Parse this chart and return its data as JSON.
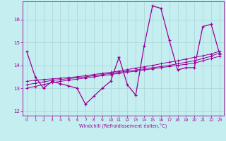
{
  "xlabel": "Windchill (Refroidissement éolien,°C)",
  "xlim": [
    -0.5,
    23.5
  ],
  "ylim": [
    11.8,
    16.8
  ],
  "yticks": [
    12,
    13,
    14,
    15,
    16
  ],
  "xticks": [
    0,
    1,
    2,
    3,
    4,
    5,
    6,
    7,
    8,
    9,
    10,
    11,
    12,
    13,
    14,
    15,
    16,
    17,
    18,
    19,
    20,
    21,
    22,
    23
  ],
  "background_color": "#c5eef0",
  "line_color": "#990099",
  "grid_color": "#b0d8dc",
  "series": {
    "main": [
      14.6,
      13.5,
      13.0,
      13.3,
      13.2,
      13.1,
      13.0,
      12.3,
      12.65,
      13.0,
      13.3,
      14.35,
      13.15,
      12.7,
      14.85,
      16.6,
      16.5,
      15.1,
      13.8,
      13.9,
      13.9,
      15.7,
      15.8,
      14.5
    ],
    "trend1": [
      13.0,
      13.08,
      13.16,
      13.24,
      13.3,
      13.35,
      13.4,
      13.45,
      13.5,
      13.55,
      13.6,
      13.65,
      13.7,
      13.75,
      13.8,
      13.85,
      13.9,
      13.95,
      14.0,
      14.05,
      14.1,
      14.2,
      14.3,
      14.4
    ],
    "trend2": [
      13.15,
      13.22,
      13.28,
      13.34,
      13.38,
      13.42,
      13.46,
      13.5,
      13.55,
      13.6,
      13.65,
      13.7,
      13.75,
      13.8,
      13.85,
      13.9,
      13.95,
      14.0,
      14.07,
      14.14,
      14.2,
      14.3,
      14.4,
      14.55
    ],
    "trend3": [
      13.3,
      13.35,
      13.38,
      13.41,
      13.44,
      13.47,
      13.5,
      13.55,
      13.6,
      13.65,
      13.7,
      13.75,
      13.82,
      13.88,
      13.94,
      14.0,
      14.07,
      14.14,
      14.2,
      14.28,
      14.35,
      14.42,
      14.5,
      14.62
    ]
  }
}
